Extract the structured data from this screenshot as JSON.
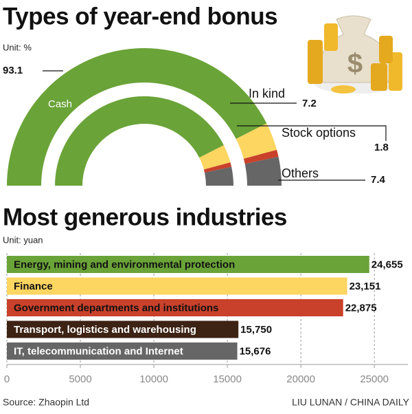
{
  "chart_data": [
    {
      "type": "semi-donut",
      "title": "Types of year-end bonus",
      "unit": "Unit: %",
      "categories": [
        "Cash",
        "In kind",
        "Stock options",
        "Others"
      ],
      "values": [
        93.1,
        7.2,
        1.8,
        7.4
      ],
      "colors": [
        "#6aa338",
        "#fdd561",
        "#c9412b",
        "#666666"
      ]
    },
    {
      "type": "bar",
      "orientation": "horizontal",
      "title": "Most generous industries",
      "unit": "Unit: yuan",
      "categories": [
        "Energy, mining and environmental protection",
        "Finance",
        "Government departments and institutions",
        "Transport, logistics and warehousing",
        "IT, telecommunication and Internet"
      ],
      "values": [
        24655,
        23151,
        22875,
        15750,
        15676
      ],
      "value_labels": [
        "24,655",
        "23,151",
        "22,875",
        "15,750",
        "15,676"
      ],
      "colors": [
        "#6aa338",
        "#fdd561",
        "#c9412b",
        "#3d2314",
        "#666666"
      ],
      "xlim": [
        0,
        27000
      ],
      "xticks": [
        0,
        5000,
        10000,
        15000,
        20000,
        25000
      ],
      "grid": true
    }
  ],
  "footer": {
    "source": "Source: Zhaopin Ltd",
    "credit": "LIU LUNAN / CHINA DAILY"
  }
}
